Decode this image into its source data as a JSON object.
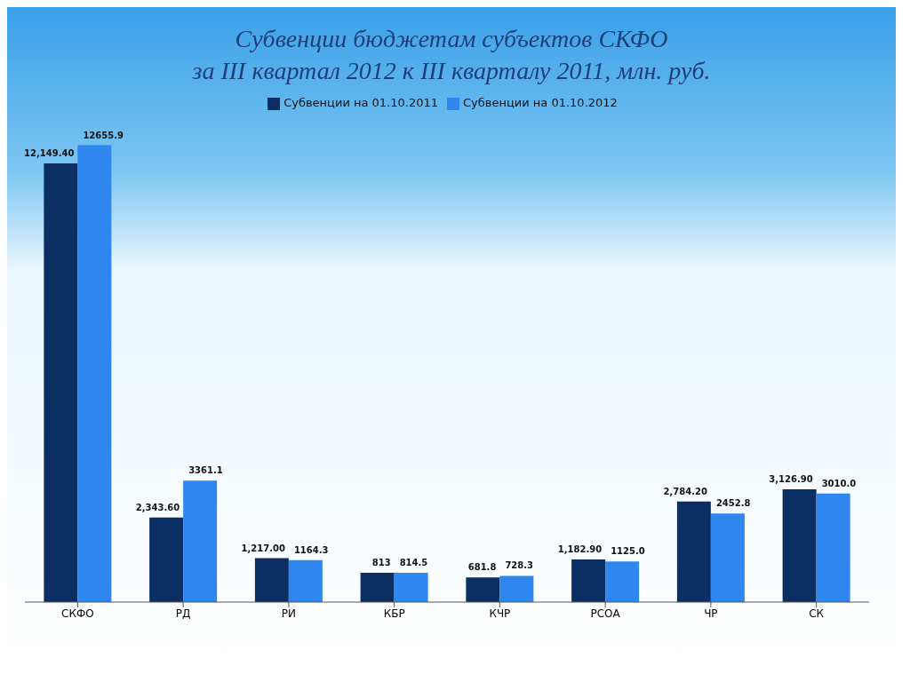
{
  "chart_data": {
    "type": "bar",
    "title": "Субвенции бюджетам субъектов СКФО\nза III квартал 2012 к III кварталу 2011, млн. руб.",
    "categories": [
      "СКФО",
      "РД",
      "РИ",
      "КБР",
      "КЧР",
      "РСОА",
      "ЧР",
      "СК"
    ],
    "legend": "top",
    "series": [
      {
        "name": "Субвенции на 01.10.2011",
        "color": "#0b2f63",
        "values": [
          12149.4,
          2343.6,
          1217,
          813,
          681.8,
          1182.9,
          2784.2,
          3126.9
        ],
        "value_labels": [
          "12,149.40",
          "2,343.60",
          "1,217.00",
          "813",
          "681.8",
          "1,182.90",
          "2,784.20",
          "3,126.90"
        ]
      },
      {
        "name": "Субвенции на 01.10.2012",
        "color": "#2f86ee",
        "values": [
          12655.9,
          3361.1,
          1164.3,
          814.5,
          728.3,
          1125.0,
          2452.8,
          3010.0
        ],
        "value_labels": [
          "12655.9",
          "3361.1",
          "1164.3",
          "814.5",
          "728.3",
          "1125.0",
          "2452.8",
          "3010.0"
        ]
      }
    ]
  }
}
